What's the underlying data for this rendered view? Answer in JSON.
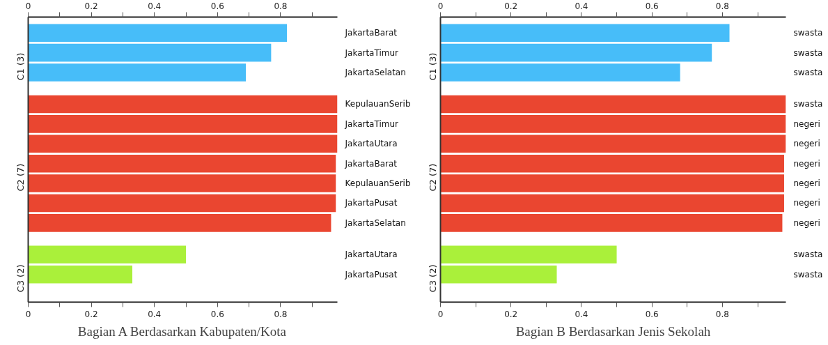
{
  "chart_data": [
    {
      "type": "bar",
      "orientation": "horizontal",
      "title": "Bagian A Berdasarkan Kabupaten/Kota",
      "categories": [
        "JakartaBarat",
        "JakartaTimur",
        "JakartaSelatan",
        "KepulauanSerib",
        "JakartaTimur",
        "JakartaUtara",
        "JakartaBarat",
        "KepulauanSerib",
        "JakartaPusat",
        "JakartaSelatan",
        "JakartaUtara",
        "JakartaPusat"
      ],
      "series": [
        {
          "name": "C1 (3)",
          "color": "#47bdf9",
          "values": [
            0.82,
            0.77,
            0.69,
            null,
            null,
            null,
            null,
            null,
            null,
            null,
            null,
            null
          ]
        },
        {
          "name": "C2 (7)",
          "color": "#ea4630",
          "values": [
            null,
            null,
            null,
            0.98,
            0.98,
            0.98,
            0.975,
            0.975,
            0.975,
            0.96,
            null,
            null
          ]
        },
        {
          "name": "C3 (2)",
          "color": "#aaf03a",
          "values": [
            null,
            null,
            null,
            null,
            null,
            null,
            null,
            null,
            null,
            null,
            0.5,
            0.33
          ]
        }
      ],
      "xlim": [
        0,
        0.98
      ],
      "xticks": [
        0,
        {
          "value": 0.1,
          "label": null
        },
        0.2,
        {
          "value": 0.3,
          "label": null
        },
        0.4,
        {
          "value": 0.5,
          "label": null
        },
        0.6,
        {
          "value": 0.7,
          "label": null
        },
        0.8,
        {
          "value": 0.9,
          "label": null
        }
      ],
      "x2lim": [
        0,
        0.98
      ],
      "x2ticks": [
        0,
        {
          "value": 0.1,
          "label": null
        },
        0.2,
        {
          "value": 0.3,
          "label": null
        },
        0.4,
        {
          "value": 0.5,
          "label": null
        },
        0.6,
        {
          "value": 0.7,
          "label": null
        },
        0.8,
        {
          "value": 0.9,
          "label": null
        }
      ],
      "grid": false,
      "legend": false
    },
    {
      "type": "bar",
      "orientation": "horizontal",
      "title": "Bagian B Berdasarkan Jenis Sekolah",
      "categories": [
        "swasta",
        "swasta",
        "swasta",
        "swasta",
        "negeri",
        "negeri",
        "negeri",
        "negeri",
        "negeri",
        "negeri",
        "swasta",
        "swasta"
      ],
      "series": [
        {
          "name": "C1 (3)",
          "color": "#47bdf9",
          "values": [
            0.82,
            0.77,
            0.68,
            null,
            null,
            null,
            null,
            null,
            null,
            null,
            null,
            null
          ]
        },
        {
          "name": "C2 (7)",
          "color": "#ea4630",
          "values": [
            null,
            null,
            null,
            0.98,
            0.98,
            0.98,
            0.975,
            0.975,
            0.975,
            0.97,
            null,
            null
          ]
        },
        {
          "name": "C3 (2)",
          "color": "#aaf03a",
          "values": [
            null,
            null,
            null,
            null,
            null,
            null,
            null,
            null,
            null,
            null,
            0.5,
            0.33
          ]
        }
      ],
      "xlim": [
        0,
        0.98
      ],
      "xticks": [
        0,
        {
          "value": 0.1,
          "label": null
        },
        0.2,
        {
          "value": 0.3,
          "label": null
        },
        0.4,
        {
          "value": 0.5,
          "label": null
        },
        0.6,
        {
          "value": 0.7,
          "label": null
        },
        0.8,
        {
          "value": 0.9,
          "label": null
        }
      ],
      "x2lim": [
        0,
        0.98
      ],
      "x2ticks": [
        0,
        {
          "value": 0.1,
          "label": null
        },
        0.2,
        {
          "value": 0.3,
          "label": null
        },
        0.4,
        {
          "value": 0.5,
          "label": null
        },
        0.6,
        {
          "value": 0.7,
          "label": null
        },
        0.8,
        {
          "value": 0.9,
          "label": null
        }
      ],
      "grid": false,
      "legend": false
    }
  ]
}
